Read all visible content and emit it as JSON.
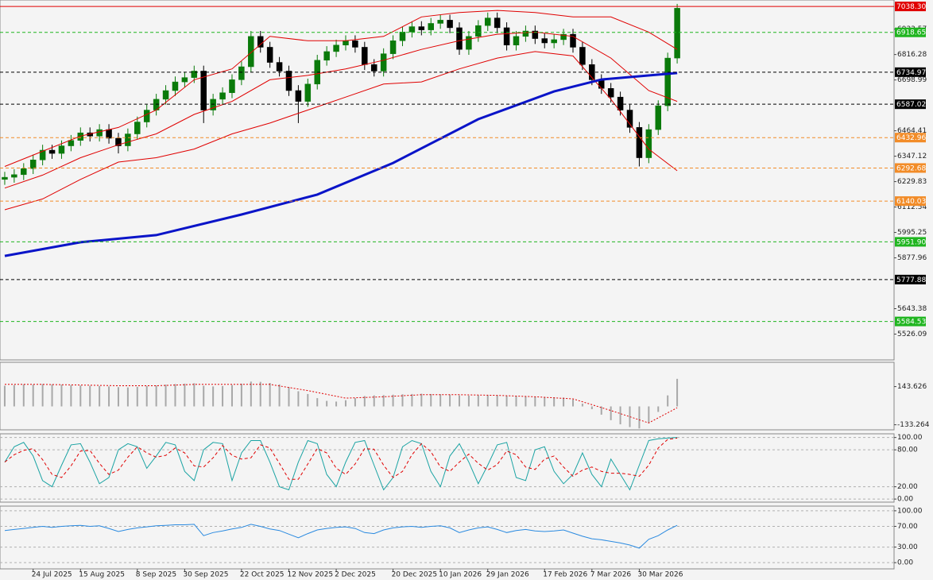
{
  "chart_data": [
    {
      "type": "candlestick",
      "up_color": "#0a7a0a",
      "down_color": "#000000",
      "open": [
        6240,
        6250,
        6262,
        6290,
        6330,
        6375,
        6360,
        6395,
        6420,
        6455,
        6440,
        6470,
        6430,
        6395,
        6450,
        6505,
        6560,
        6610,
        6650,
        6690,
        6710,
        6740,
        6560,
        6610,
        6640,
        6700,
        6760,
        6900,
        6850,
        6780,
        6740,
        6650,
        6600,
        6680,
        6790,
        6830,
        6860,
        6880,
        6850,
        6770,
        6740,
        6820,
        6880,
        6920,
        6945,
        6930,
        6960,
        6975,
        6940,
        6840,
        6900,
        6950,
        6985,
        6940,
        6860,
        6900,
        6925,
        6890,
        6870,
        6885,
        6910,
        6850,
        6770,
        6700,
        6660,
        6620,
        6560,
        6480,
        6340,
        6470,
        6580,
        6800
      ],
      "high": [
        6275,
        6287,
        6315,
        6355,
        6400,
        6400,
        6420,
        6445,
        6480,
        6480,
        6495,
        6495,
        6455,
        6475,
        6530,
        6585,
        6635,
        6675,
        6715,
        6735,
        6765,
        6765,
        6635,
        6665,
        6725,
        6785,
        6925,
        6925,
        6875,
        6805,
        6765,
        6675,
        6705,
        6815,
        6855,
        6885,
        6905,
        6905,
        6875,
        6795,
        6845,
        6905,
        6945,
        6970,
        6970,
        6985,
        7000,
        7000,
        6965,
        6925,
        6975,
        7010,
        7010,
        6965,
        6925,
        6950,
        6950,
        6915,
        6910,
        6935,
        6935,
        6875,
        6795,
        6725,
        6685,
        6645,
        6585,
        6505,
        6495,
        6605,
        6825,
        7050
      ],
      "low": [
        6215,
        6225,
        6237,
        6265,
        6305,
        6335,
        6335,
        6370,
        6395,
        6415,
        6415,
        6405,
        6360,
        6370,
        6425,
        6480,
        6535,
        6585,
        6625,
        6665,
        6685,
        6500,
        6535,
        6585,
        6615,
        6675,
        6735,
        6825,
        6755,
        6715,
        6625,
        6500,
        6575,
        6655,
        6765,
        6805,
        6835,
        6825,
        6745,
        6715,
        6715,
        6795,
        6855,
        6895,
        6905,
        6905,
        6935,
        6915,
        6815,
        6815,
        6875,
        6925,
        6915,
        6835,
        6835,
        6875,
        6865,
        6845,
        6845,
        6860,
        6825,
        6745,
        6675,
        6635,
        6595,
        6535,
        6455,
        6300,
        6315,
        6445,
        6555,
        6775
      ],
      "close": [
        6250,
        6262,
        6290,
        6330,
        6375,
        6360,
        6395,
        6420,
        6455,
        6440,
        6470,
        6430,
        6395,
        6450,
        6505,
        6560,
        6610,
        6650,
        6690,
        6710,
        6740,
        6560,
        6610,
        6640,
        6700,
        6760,
        6900,
        6850,
        6780,
        6740,
        6650,
        6600,
        6680,
        6790,
        6830,
        6860,
        6880,
        6850,
        6770,
        6740,
        6820,
        6880,
        6920,
        6945,
        6930,
        6960,
        6975,
        6940,
        6840,
        6900,
        6950,
        6985,
        6940,
        6860,
        6900,
        6925,
        6890,
        6870,
        6885,
        6910,
        6850,
        6770,
        6700,
        6660,
        6620,
        6560,
        6480,
        6340,
        6470,
        6580,
        6800,
        7030
      ],
      "lines": [
        {
          "color": "#e00000",
          "x": [
            0,
            4,
            8,
            12,
            16,
            20,
            24,
            28,
            32,
            36,
            40,
            44,
            48,
            52,
            56,
            60,
            64,
            68,
            71
          ],
          "values": [
            6300,
            6370,
            6440,
            6480,
            6560,
            6700,
            6750,
            6900,
            6880,
            6880,
            6900,
            6990,
            7010,
            7020,
            7010,
            6990,
            6990,
            6920,
            6840
          ]
        },
        {
          "color": "#e00000",
          "x": [
            0,
            4,
            8,
            12,
            16,
            20,
            24,
            28,
            32,
            36,
            40,
            44,
            48,
            52,
            56,
            60,
            64,
            68,
            71
          ],
          "values": [
            6200,
            6260,
            6340,
            6400,
            6450,
            6540,
            6600,
            6700,
            6720,
            6750,
            6790,
            6840,
            6880,
            6910,
            6920,
            6900,
            6800,
            6650,
            6600
          ]
        },
        {
          "color": "#e00000",
          "x": [
            0,
            4,
            8,
            12,
            16,
            20,
            24,
            28,
            32,
            36,
            40,
            44,
            48,
            52,
            56,
            60,
            64,
            68,
            71
          ],
          "values": [
            6100,
            6150,
            6240,
            6320,
            6340,
            6380,
            6450,
            6500,
            6560,
            6620,
            6680,
            6690,
            6750,
            6800,
            6830,
            6810,
            6610,
            6380,
            6280
          ]
        },
        {
          "color": "#0a14c8",
          "width": 3,
          "x": [
            0,
            8,
            16,
            25,
            33,
            41,
            50,
            58,
            63,
            71
          ],
          "values": [
            5887,
            5950,
            5983,
            6078,
            6170,
            6316,
            6518,
            6646,
            6701,
            6731
          ]
        }
      ],
      "levels": [
        {
          "value": 7038.3,
          "label": "7038.30",
          "color": "#e00000",
          "style": "solid"
        },
        {
          "value": 6918.65,
          "color": "#1fb51f",
          "style": "dashed"
        },
        {
          "value": 6734.97,
          "color": "#000000",
          "style": "dashed"
        },
        {
          "value": 6587.02,
          "color": "#000000",
          "style": "dashed"
        },
        {
          "value": 6432.96,
          "color": "#f28c28",
          "style": "dashed"
        },
        {
          "value": 6292.68,
          "color": "#f28c28",
          "style": "dashed"
        },
        {
          "value": 6140.03,
          "color": "#f28c28",
          "style": "dashed"
        },
        {
          "value": 5951.9,
          "label": "5951.90",
          "color": "#1fb51f",
          "style": "dashed"
        },
        {
          "value": 5777.88,
          "color": "#000000",
          "style": "dashed"
        },
        {
          "value": 5584.53,
          "color": "#1fb51f",
          "style": "dashed"
        }
      ],
      "ylim": [
        5407,
        7068
      ],
      "yticks": [
        6933.57,
        6816.28,
        6698.99,
        6464.41,
        6347.12,
        6229.83,
        6112.54,
        5995.25,
        5877.96,
        5643.38,
        5526.09
      ],
      "grid": false
    },
    {
      "type": "bar",
      "color": "#a8a8a8",
      "values": [
        150,
        155,
        160,
        158,
        162,
        160,
        158,
        155,
        152,
        150,
        148,
        145,
        140,
        138,
        142,
        148,
        152,
        158,
        162,
        165,
        168,
        150,
        145,
        148,
        155,
        165,
        180,
        178,
        170,
        160,
        140,
        110,
        90,
        60,
        40,
        35,
        45,
        60,
        75,
        80,
        82,
        85,
        88,
        90,
        92,
        90,
        88,
        85,
        80,
        78,
        80,
        82,
        80,
        76,
        74,
        72,
        70,
        68,
        66,
        64,
        50,
        20,
        -20,
        -60,
        -100,
        -130,
        -150,
        -160,
        -120,
        -40,
        80,
        200
      ],
      "lines": [
        {
          "color": "#e00000",
          "style": "dotted",
          "x": [
            0,
            4,
            8,
            12,
            16,
            20,
            24,
            28,
            32,
            36,
            40,
            44,
            48,
            52,
            56,
            60,
            64,
            68,
            71
          ],
          "values": [
            160,
            160,
            155,
            150,
            150,
            160,
            160,
            160,
            115,
            60,
            70,
            85,
            85,
            80,
            70,
            55,
            -30,
            -120,
            -10
          ]
        }
      ],
      "ylim": [
        -170,
        320
      ],
      "yticks": [
        143.626,
        -133.264
      ],
      "grid": false
    },
    {
      "type": "line",
      "series": [
        {
          "color": "#1aa3a3",
          "style": "solid",
          "values": [
            60,
            85,
            92,
            70,
            30,
            20,
            55,
            88,
            90,
            60,
            25,
            35,
            80,
            90,
            85,
            50,
            70,
            92,
            88,
            45,
            30,
            80,
            92,
            90,
            30,
            75,
            95,
            95,
            60,
            20,
            15,
            60,
            95,
            90,
            40,
            20,
            60,
            92,
            95,
            55,
            15,
            35,
            85,
            95,
            90,
            45,
            20,
            70,
            90,
            60,
            25,
            55,
            88,
            92,
            35,
            30,
            80,
            85,
            45,
            25,
            40,
            75,
            40,
            20,
            65,
            40,
            15,
            55,
            95,
            98,
            99,
            100
          ]
        },
        {
          "color": "#e00000",
          "style": "dashed",
          "values": [
            60,
            72,
            79,
            82,
            64,
            40,
            35,
            54,
            78,
            79,
            58,
            40,
            47,
            68,
            85,
            75,
            68,
            71,
            83,
            75,
            54,
            52,
            67,
            87,
            71,
            65,
            67,
            88,
            83,
            58,
            32,
            32,
            57,
            82,
            75,
            50,
            40,
            57,
            82,
            81,
            55,
            35,
            45,
            72,
            90,
            77,
            52,
            45,
            60,
            73,
            58,
            47,
            56,
            78,
            72,
            52,
            48,
            65,
            70,
            52,
            37,
            47,
            52,
            45,
            42,
            42,
            40,
            37,
            55,
            83,
            97,
            99
          ]
        }
      ],
      "ylim": [
        -5,
        106
      ],
      "yticks": [
        {
          "value": 100,
          "label": "100.00"
        },
        {
          "value": 80,
          "label": "80.00"
        },
        {
          "value": 20,
          "label": "20.00"
        },
        {
          "value": 0,
          "label": "0.00"
        }
      ],
      "grid": true
    },
    {
      "type": "line",
      "series": [
        {
          "color": "#2a8ae0",
          "style": "solid",
          "values": [
            62,
            64,
            66,
            68,
            70,
            68,
            70,
            71,
            72,
            70,
            71,
            66,
            60,
            64,
            67,
            69,
            71,
            72,
            73,
            73,
            74,
            52,
            58,
            61,
            65,
            68,
            74,
            70,
            65,
            62,
            55,
            48,
            56,
            63,
            66,
            68,
            69,
            66,
            58,
            56,
            63,
            67,
            69,
            70,
            68,
            70,
            71,
            67,
            58,
            63,
            67,
            69,
            64,
            58,
            62,
            64,
            61,
            60,
            61,
            63,
            57,
            51,
            46,
            44,
            41,
            38,
            34,
            28,
            45,
            52,
            63,
            72
          ]
        }
      ],
      "ylim": [
        -12,
        109
      ],
      "yticks": [
        {
          "value": 100,
          "label": "100.00"
        },
        {
          "value": 70,
          "label": "70.00"
        },
        {
          "value": 30,
          "label": "30.00"
        },
        {
          "value": 0,
          "label": "0.00"
        }
      ],
      "grid": true,
      "xlim": [
        -0.5,
        93.9
      ],
      "xticks": [
        {
          "value": 3,
          "label": "24 Jul 2025"
        },
        {
          "value": 8,
          "label": "15 Aug 2025"
        },
        {
          "value": 14,
          "label": "8 Sep 2025"
        },
        {
          "value": 19,
          "label": "30 Sep 2025"
        },
        {
          "value": 25,
          "label": "22 Oct 2025"
        },
        {
          "value": 30,
          "label": "12 Nov 2025"
        },
        {
          "value": 35,
          "label": "2 Dec 2025"
        },
        {
          "value": 41,
          "label": "20 Dec 2025"
        },
        {
          "value": 46,
          "label": "10 Jan 2026"
        },
        {
          "value": 51,
          "label": "29 Jan 2026"
        },
        {
          "value": 57,
          "label": "17 Feb 2026"
        },
        {
          "value": 62,
          "label": "7 Mar 2026"
        },
        {
          "value": 67,
          "label": "30 Mar 2026"
        }
      ]
    }
  ]
}
